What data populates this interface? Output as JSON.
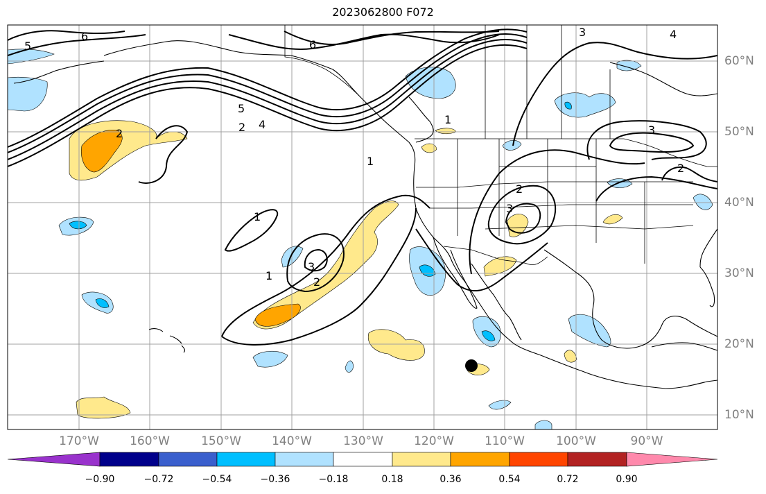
{
  "title": "2023062800 F072",
  "lon_labels": [
    "170°W",
    "160°W",
    "150°W",
    "140°W",
    "130°W",
    "120°W",
    "110°W",
    "100°W",
    "90°W"
  ],
  "lat_labels": [
    "60°N",
    "50°N",
    "40°N",
    "30°N",
    "20°N",
    "10°N"
  ],
  "contour_labels": [
    "6",
    "5",
    "6",
    "4",
    "3",
    "2",
    "5",
    "4",
    "2",
    "1",
    "1",
    "1",
    "3",
    "2",
    "1",
    "2",
    "3",
    "3",
    "2"
  ],
  "colorbar": {
    "ticks": [
      "−0.90",
      "−0.72",
      "−0.54",
      "−0.36",
      "−0.18",
      "0.18",
      "0.36",
      "0.54",
      "0.72",
      "0.90"
    ],
    "colors": [
      "#9932cc",
      "#00008b",
      "#3a5fcd",
      "#00bfff",
      "#b0e2ff",
      "#ffffff",
      "#ffe98c",
      "#ffa500",
      "#ff4500",
      "#b22222",
      "#ff89ac"
    ]
  },
  "fill_colors": {
    "pale_blue": "#b0e2ff",
    "deep_sky_blue": "#00bfff",
    "yellow": "#ffe98c",
    "orange": "#ffa500"
  }
}
